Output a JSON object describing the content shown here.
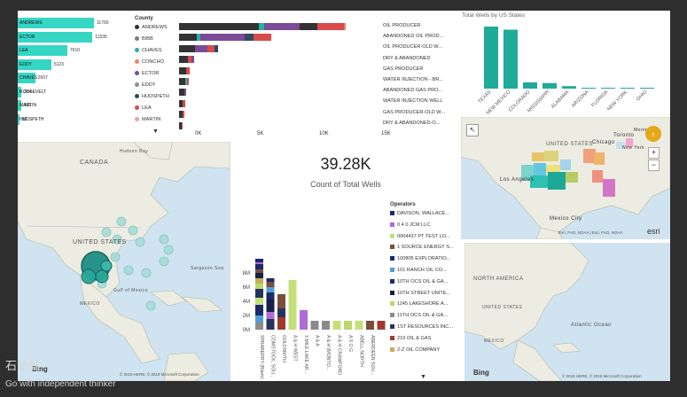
{
  "panel_county_wells": {
    "rows": [
      {
        "label": "ANDREWS",
        "value": "11760",
        "frac": 1.0
      },
      {
        "label": "ECTOR",
        "value": "11535",
        "frac": 0.98
      },
      {
        "label": "LEA",
        "value": "7610",
        "frac": 0.65
      },
      {
        "label": "EDDY",
        "value": "5123",
        "frac": 0.44
      },
      {
        "label": "CHAVES",
        "value": "2607",
        "frac": 0.23
      },
      {
        "label": "ROOSEVELT",
        "value": "354",
        "frac": 0.05
      },
      {
        "label": "MARTIN",
        "value": "325",
        "frac": 0.045
      },
      {
        "label": "HUDSPETH",
        "value": "88",
        "frac": 0.02
      }
    ],
    "color": "#35d6c4"
  },
  "panel_county_types": {
    "legend_title": "County",
    "counties": [
      {
        "name": "ANDREWS",
        "color": "#333333"
      },
      {
        "name": "BIBB",
        "color": "#7a7a7a"
      },
      {
        "name": "CHAVES",
        "color": "#22b3a5"
      },
      {
        "name": "CONCHO",
        "color": "#e2856b"
      },
      {
        "name": "ECTOR",
        "color": "#7b4b96"
      },
      {
        "name": "EDDY",
        "color": "#8e8e8e"
      },
      {
        "name": "HUDSPETH",
        "color": "#2f4b5f"
      },
      {
        "name": "LEA",
        "color": "#d94a4a"
      },
      {
        "name": "MARTIN",
        "color": "#f09da0"
      }
    ],
    "axis_ticks": [
      "0K",
      "5K",
      "10K",
      "15K"
    ],
    "types": [
      "OIL PRODUCER",
      "ABANDONED OIL PROD...",
      "OIL PRODUCER-OLD W...",
      "DRY & ABANDONED",
      "GAS PRODUCER",
      "WATER INJECTION - BR...",
      "ABANDONED GAS PRO...",
      "WATER INJECTION WELL",
      "GAS PRODUCER-OLD W...",
      "DRY & ABANDONED-O..."
    ]
  },
  "panel_states": {
    "title": "Total Wells by US States",
    "states": [
      "TEXAS",
      "NEW MEXICO",
      "COLORADO",
      "MISSISSIPPI",
      "ALABAMA",
      "ARIZONA",
      "FLORIDA",
      "NEW YORK",
      "OHIO"
    ],
    "values": [
      1.0,
      0.95,
      0.1,
      0.09,
      0.04,
      0.005,
      0.005,
      0.004,
      0.003
    ],
    "color": "#1fab98"
  },
  "card": {
    "value": "39.28K",
    "label": "Count of Total Wells"
  },
  "panel_operators": {
    "legend_title": "Operators",
    "operators": [
      {
        "name": "DAVISON, WALLACE...",
        "color": "#1b2a6b"
      },
      {
        "name": "0 4 0 JCM LLC",
        "color": "#b26ad6"
      },
      {
        "name": "0004437 PT TEST LO...",
        "color": "#c5e07a"
      },
      {
        "name": "1 SOURCE ENERGY S...",
        "color": "#7a4e3a"
      },
      {
        "name": "100805 EXPLORATIO...",
        "color": "#1b2a6b"
      },
      {
        "name": "101 RANCH OIL CO...",
        "color": "#4f9fd6"
      },
      {
        "name": "10TH OCS OIL & GA...",
        "color": "#1b2a6b"
      },
      {
        "name": "10TH STREET UNITE...",
        "color": "#152246"
      },
      {
        "name": "1145 LAKESHORE A...",
        "color": "#b8d96a"
      },
      {
        "name": "11TH OCS OIL & GA...",
        "color": "#8b8b8b"
      },
      {
        "name": "1ST RESOURCES INC...",
        "color": "#24345c"
      },
      {
        "name": "210 OIL & GAS",
        "color": "#a13b2f"
      },
      {
        "name": "2-Z OIL COMPANY",
        "color": "#c8ad5a"
      }
    ],
    "y_ticks": [
      "0M",
      "2M",
      "4M",
      "6M",
      "8M"
    ],
    "categories": [
      "SPRABERRY (Blank)",
      "COMSTOCK, SOU...",
      "GOLDSMITH",
      "A & H WEST",
      "3 MILE LAKE AR...",
      "A & A",
      "A & H (MONTO...",
      "A & H CRAWFORD",
      "A S O G",
      "ABELL NORTH",
      "ABERDEEN SOU..."
    ]
  },
  "map_us": {
    "labels": [
      "CANADA",
      "UNITED STATES",
      "MEXICO",
      "Gulf of Mexico",
      "Hudson Bay",
      "Sargasso Sea"
    ],
    "attribution": "© 2019 HERE, © 2019 Microsoft Corporation",
    "brand": "Bing"
  },
  "map_states": {
    "labels": [
      "UNITED STATES",
      "Chicago",
      "Toronto",
      "New York",
      "Los Angeles",
      "Mexico City",
      "Montreal"
    ],
    "attribution": "Esri, FAO, NOAA | Esri, FAO, NOAA",
    "brand": "esri"
  },
  "map_na": {
    "labels": [
      "NORTH AMERICA",
      "UNITED STATES",
      "MEXICO",
      "Atlantic Ocean"
    ],
    "attribution": "© 2019 HERE, © 2019 Microsoft Corporation",
    "brand": "Bing"
  },
  "watermark": {
    "line1": "石油圈",
    "line2": "Go with independent thinker"
  }
}
